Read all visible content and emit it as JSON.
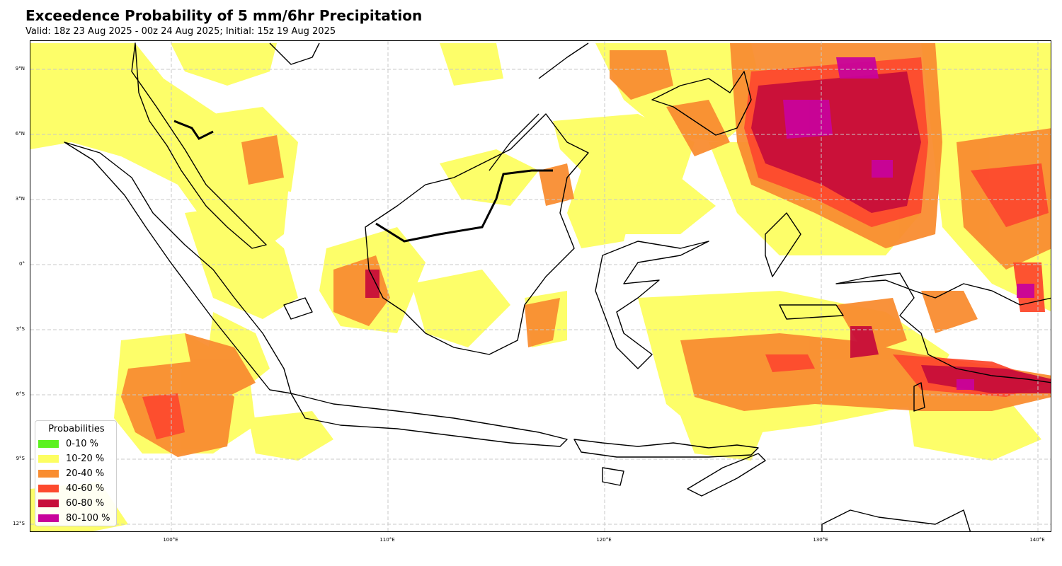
{
  "title": "Exceedence Probability of 5 mm/6hr Precipitation",
  "subtitle": "Valid: 18z 23 Aug 2025 - 00z 24 Aug 2025; Initial: 15z 19 Aug 2025",
  "axes": {
    "lat_ticks": [
      "9°N",
      "6°N",
      "3°N",
      "0°",
      "3°S",
      "6°S",
      "9°S",
      "12°S"
    ],
    "lon_ticks": [
      "100°E",
      "110°E",
      "120°E",
      "130°E",
      "140°E"
    ]
  },
  "legend": {
    "title": "Probabilities",
    "entries": [
      {
        "label": "0-10 %",
        "color": "#5cf21f"
      },
      {
        "label": "10-20 %",
        "color": "#fdfe61"
      },
      {
        "label": "20-40 %",
        "color": "#f98d31"
      },
      {
        "label": "40-60 %",
        "color": "#fd4a2e"
      },
      {
        "label": "60-80 %",
        "color": "#c70e3a"
      },
      {
        "label": "80-100 %",
        "color": "#c8039a"
      }
    ]
  },
  "colors": {
    "gridline": "#c8c8c8",
    "coastline": "#000000"
  }
}
